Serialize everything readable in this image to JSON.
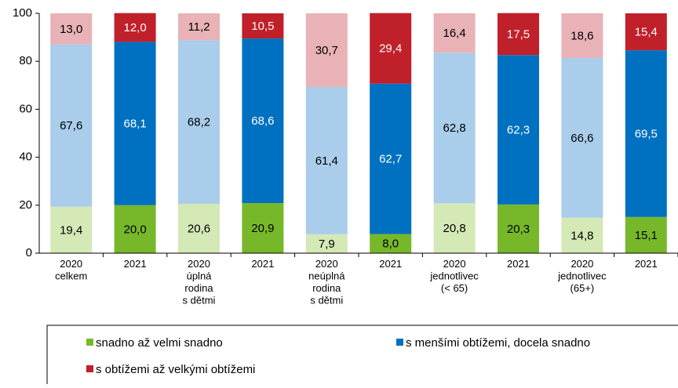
{
  "chart_data": {
    "type": "stacked_bar",
    "categories": [
      [
        "2020",
        "celkem"
      ],
      [
        "2021"
      ],
      [
        "2020",
        "úplná",
        "rodina",
        "s dětmi"
      ],
      [
        "2021"
      ],
      [
        "2020",
        "neúplná",
        "rodina",
        "s dětmi"
      ],
      [
        "2021"
      ],
      [
        "2020",
        "jednotlivec",
        "(< 65)"
      ],
      [
        "2021"
      ],
      [
        "2020",
        "jednotlivec",
        "(65+)"
      ],
      [
        "2021"
      ]
    ],
    "series": [
      {
        "name": "snadno až velmi snadno",
        "color": "#77b82a",
        "light_color": "#d4e9b6",
        "values": [
          19.4,
          20.0,
          20.6,
          20.9,
          7.9,
          8.0,
          20.8,
          20.3,
          14.8,
          15.1
        ],
        "value_labels": [
          "19,4",
          "20,0",
          "20,6",
          "20,9",
          "7,9",
          "8,0",
          "20,8",
          "20,3",
          "14,8",
          "15,1"
        ]
      },
      {
        "name": "s menšími obtížemi, docela snadno",
        "color": "#0070c0",
        "light_color": "#a9cdea",
        "values": [
          67.6,
          68.1,
          68.2,
          68.6,
          61.4,
          62.7,
          62.8,
          62.3,
          66.6,
          69.5
        ],
        "value_labels": [
          "67,6",
          "68,1",
          "68,2",
          "68,6",
          "61,4",
          "62,7",
          "62,8",
          "62,3",
          "66,6",
          "69,5"
        ]
      },
      {
        "name": "s obtížemi až velkými obtížemi",
        "color": "#c0202a",
        "light_color": "#e8b2b7",
        "values": [
          13.0,
          12.0,
          11.2,
          10.5,
          30.7,
          29.4,
          16.4,
          17.5,
          18.6,
          15.4
        ],
        "value_labels": [
          "13,0",
          "12,0",
          "11,2",
          "10,5",
          "30,7",
          "29,4",
          "16,4",
          "17,5",
          "18,6",
          "15,4"
        ]
      }
    ],
    "ylim": [
      0,
      100
    ],
    "yticks": [
      0,
      20,
      40,
      60,
      80,
      100
    ],
    "grid": false
  }
}
